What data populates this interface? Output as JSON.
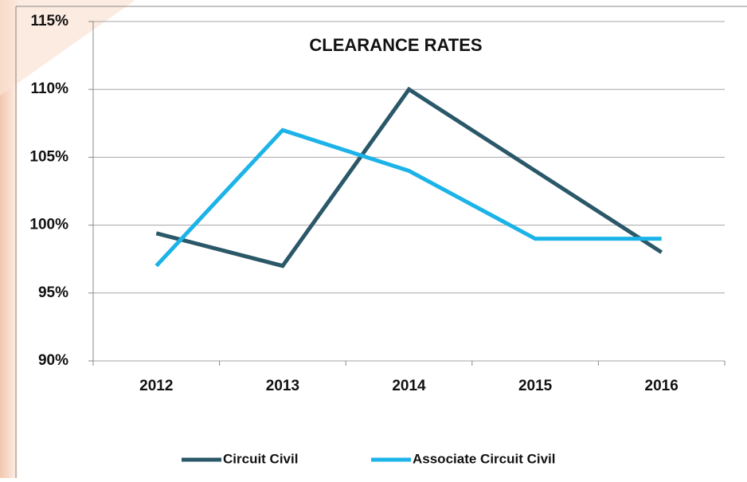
{
  "chart_data": {
    "type": "line",
    "title": "CLEARANCE RATES",
    "categories": [
      "2012",
      "2013",
      "2014",
      "2015",
      "2016"
    ],
    "series": [
      {
        "name": "Circuit Civil",
        "color": "#2a5868",
        "values": [
          99.4,
          97,
          110,
          104,
          98
        ]
      },
      {
        "name": "Associate Circuit Civil",
        "color": "#1bb3e8",
        "values": [
          97,
          107,
          104,
          99,
          99
        ]
      }
    ],
    "ylim": [
      90,
      115
    ],
    "yticks": [
      {
        "value": 90,
        "label": "90%"
      },
      {
        "value": 95,
        "label": "95%"
      },
      {
        "value": 100,
        "label": "100%"
      },
      {
        "value": 105,
        "label": "105%"
      },
      {
        "value": 110,
        "label": "110%"
      },
      {
        "value": 115,
        "label": "115%"
      }
    ],
    "grid": true,
    "legend": "bottom"
  }
}
